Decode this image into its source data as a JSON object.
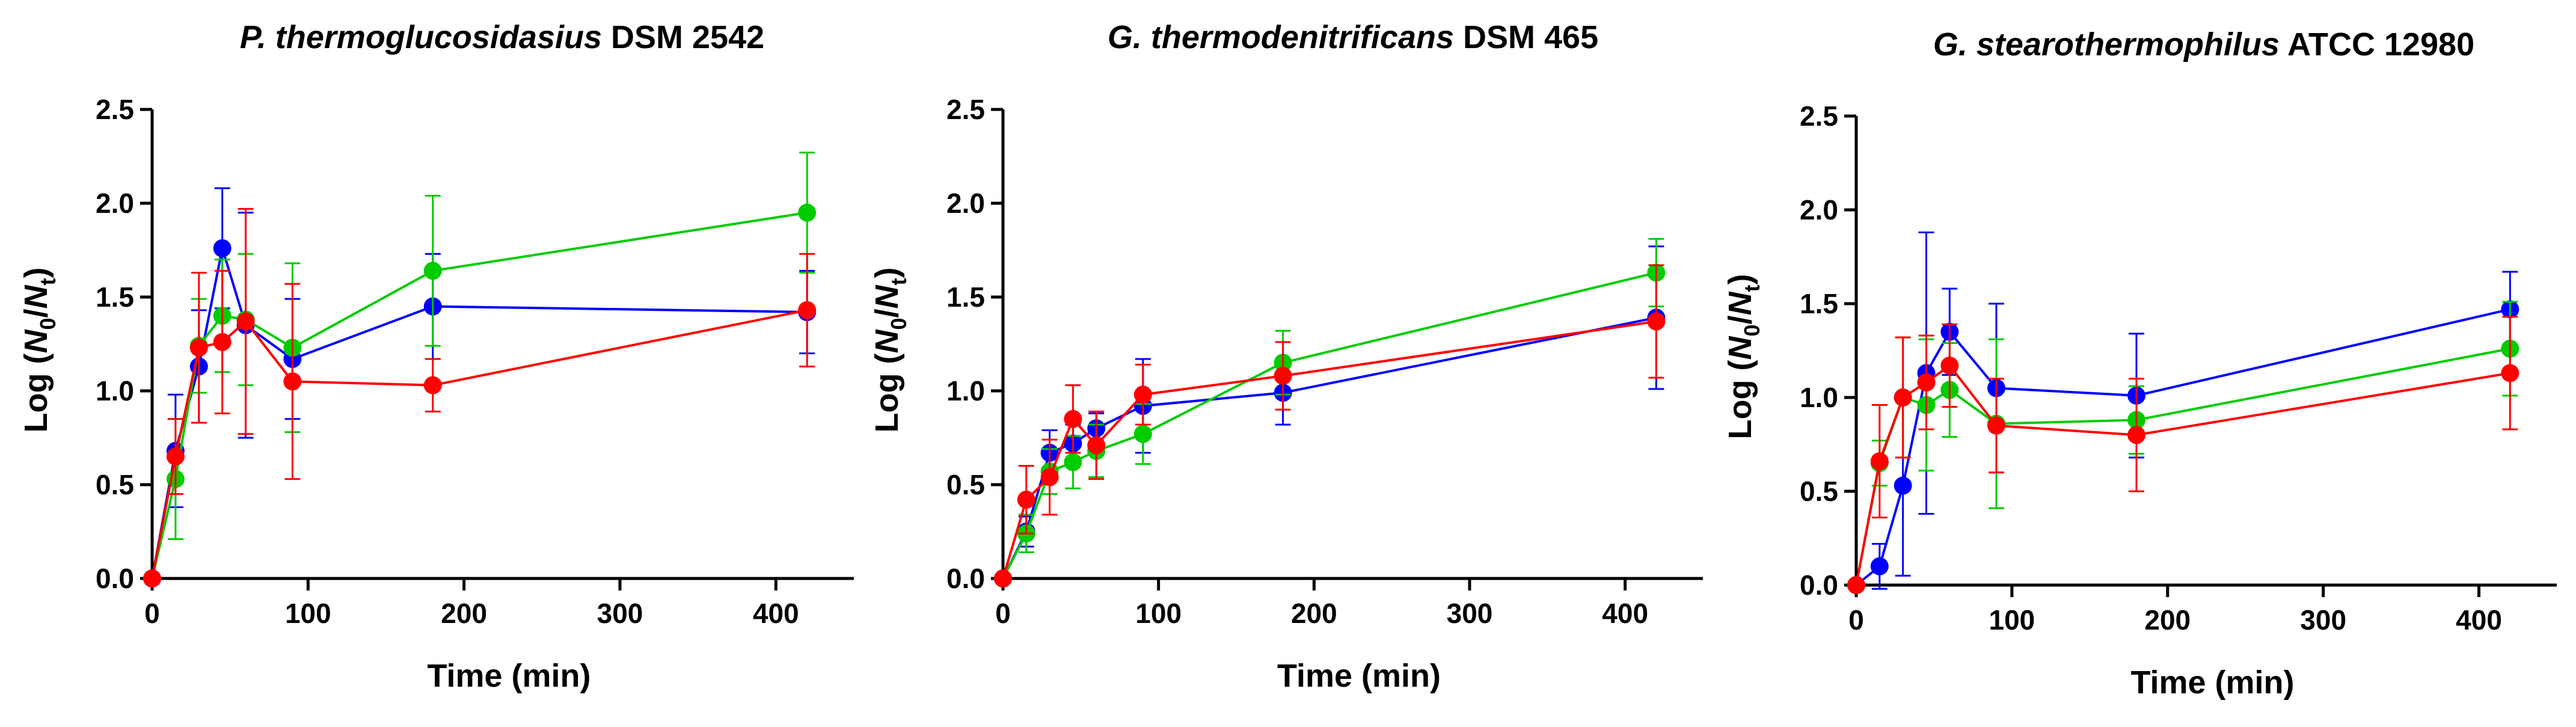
{
  "chart_data": [
    {
      "type": "line",
      "title_italic": "P. thermoglucosidasius",
      "title_plain": " DSM 2542",
      "xlabel": "Time (min)",
      "ylabel_prefix": "Log (",
      "ylabel_n": "N",
      "ylabel_sub0": "0",
      "ylabel_slash": "/",
      "ylabel_sub_t": "t",
      "ylabel_suffix": ")",
      "xlim": [
        0,
        450
      ],
      "ylim": [
        0,
        2.5
      ],
      "xticks": [
        0,
        100,
        200,
        300,
        400
      ],
      "xtick_labels": [
        "0",
        "100",
        "200",
        "300",
        "400"
      ],
      "yticks": [
        0,
        0.5,
        1.0,
        1.5,
        2.0,
        2.5
      ],
      "ytick_labels": [
        "0.0",
        "0.5",
        "1.0",
        "1.5",
        "2.0",
        "2.5"
      ],
      "x": [
        0,
        15,
        30,
        45,
        60,
        90,
        180,
        420
      ],
      "series": [
        {
          "name": "blue",
          "color": "#0000ff",
          "values": [
            0,
            0.68,
            1.13,
            1.76,
            1.35,
            1.17,
            1.45,
            1.42
          ],
          "errors": [
            0,
            0.3,
            0.3,
            0.32,
            0.6,
            0.32,
            0.28,
            0.22
          ]
        },
        {
          "name": "green",
          "color": "#00cc00",
          "values": [
            0,
            0.53,
            1.24,
            1.4,
            1.38,
            1.23,
            1.64,
            1.95
          ],
          "errors": [
            0,
            0.32,
            0.25,
            0.3,
            0.35,
            0.45,
            0.4,
            0.32
          ]
        },
        {
          "name": "red",
          "color": "#ff0000",
          "values": [
            0,
            0.65,
            1.23,
            1.26,
            1.37,
            1.05,
            1.03,
            1.43
          ],
          "errors": [
            0,
            0.2,
            0.4,
            0.38,
            0.6,
            0.52,
            0.14,
            0.3
          ]
        }
      ]
    },
    {
      "type": "line",
      "title_italic": "G. thermodenitrificans",
      "title_plain": " DSM 465",
      "xlabel": "Time (min)",
      "ylabel_prefix": "Log (",
      "ylabel_n": "N",
      "ylabel_sub0": "0",
      "ylabel_slash": "/",
      "ylabel_sub_t": "t",
      "ylabel_suffix": ")",
      "xlim": [
        0,
        450
      ],
      "ylim": [
        0,
        2.5
      ],
      "xticks": [
        0,
        100,
        200,
        300,
        400
      ],
      "xtick_labels": [
        "0",
        "100",
        "200",
        "300",
        "400"
      ],
      "yticks": [
        0,
        0.5,
        1.0,
        1.5,
        2.0,
        2.5
      ],
      "ytick_labels": [
        "0.0",
        "0.5",
        "1.0",
        "1.5",
        "2.0",
        "2.5"
      ],
      "x": [
        0,
        15,
        30,
        45,
        60,
        90,
        180,
        420
      ],
      "series": [
        {
          "name": "blue",
          "color": "#0000ff",
          "values": [
            0,
            0.25,
            0.67,
            0.72,
            0.8,
            0.92,
            0.99,
            1.39
          ],
          "errors": [
            0,
            0.08,
            0.12,
            0.1,
            0.08,
            0.25,
            0.17,
            0.38
          ]
        },
        {
          "name": "green",
          "color": "#00cc00",
          "values": [
            0,
            0.24,
            0.57,
            0.62,
            0.68,
            0.77,
            1.15,
            1.63
          ],
          "errors": [
            0,
            0.1,
            0.12,
            0.14,
            0.14,
            0.16,
            0.17,
            0.18
          ]
        },
        {
          "name": "red",
          "color": "#ff0000",
          "values": [
            0,
            0.42,
            0.54,
            0.85,
            0.71,
            0.98,
            1.08,
            1.37
          ],
          "errors": [
            0,
            0.18,
            0.2,
            0.18,
            0.18,
            0.16,
            0.18,
            0.3
          ]
        }
      ]
    },
    {
      "type": "line",
      "title_italic": "G. stearothermophilus",
      "title_plain": " ATCC 12980",
      "xlabel": "Time (min)",
      "ylabel_prefix": "Log (",
      "ylabel_n": "N",
      "ylabel_sub0": "0",
      "ylabel_slash": "/",
      "ylabel_sub_t": "t",
      "ylabel_suffix": ")",
      "xlim": [
        0,
        450
      ],
      "ylim": [
        0,
        2.5
      ],
      "xticks": [
        0,
        100,
        200,
        300,
        400
      ],
      "xtick_labels": [
        "0",
        "100",
        "200",
        "300",
        "400"
      ],
      "yticks": [
        0,
        0.5,
        1.0,
        1.5,
        2.0,
        2.5
      ],
      "ytick_labels": [
        "0.0",
        "0.5",
        "1.0",
        "1.5",
        "2.0",
        "2.5"
      ],
      "x": [
        0,
        15,
        30,
        45,
        60,
        90,
        180,
        420
      ],
      "series": [
        {
          "name": "blue",
          "color": "#0000ff",
          "values": [
            0,
            0.1,
            0.53,
            1.13,
            1.35,
            1.05,
            1.01,
            1.47
          ],
          "errors": [
            0,
            0.12,
            0.48,
            0.75,
            0.23,
            0.45,
            0.33,
            0.2
          ]
        },
        {
          "name": "green",
          "color": "#00cc00",
          "values": [
            0,
            0.65,
            1.0,
            0.96,
            1.04,
            0.86,
            0.88,
            1.26
          ],
          "errors": [
            0,
            0.12,
            0.32,
            0.35,
            0.25,
            0.45,
            0.18,
            0.25
          ]
        },
        {
          "name": "red",
          "color": "#ff0000",
          "values": [
            0,
            0.66,
            1.0,
            1.08,
            1.17,
            0.85,
            0.8,
            1.13
          ],
          "errors": [
            0,
            0.3,
            0.32,
            0.25,
            0.22,
            0.25,
            0.3,
            0.3
          ]
        }
      ]
    }
  ]
}
